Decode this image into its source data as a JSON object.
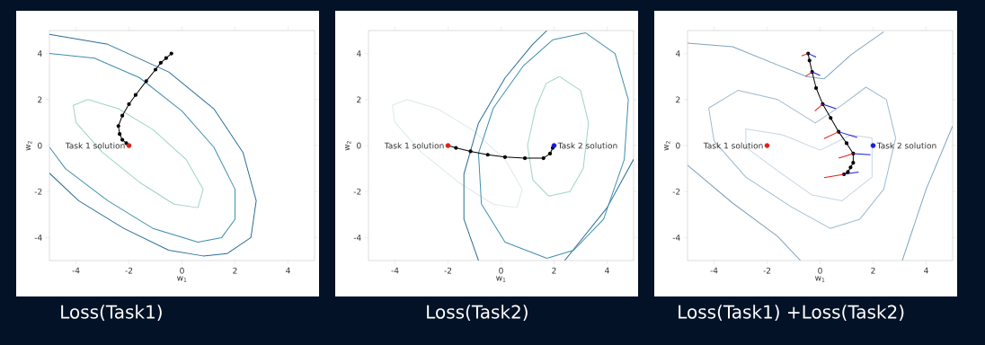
{
  "chart_data": [
    {
      "type": "line",
      "title": "Loss(Task1)",
      "xlabel": "w$_{1}$",
      "ylabel": "w$_{2}$",
      "xlim": [
        -5,
        5
      ],
      "ylim": [
        -5,
        5
      ],
      "xticks": [
        -4,
        -2,
        0,
        2,
        4
      ],
      "yticks": [
        -4,
        -2,
        0,
        2,
        4
      ],
      "series": [
        {
          "color": "#2b6e96",
          "x": [
            -5,
            -2.8,
            -0.5,
            1.2,
            2.3,
            2.8,
            2.6,
            1.7,
            0.8,
            -0.5,
            -2.2,
            -3.9,
            -5
          ],
          "values": [
            4.83,
            4.4,
            3.2,
            1.6,
            -0.3,
            -2.4,
            -4.0,
            -4.7,
            -4.8,
            -4.55,
            -3.6,
            -2.4,
            -1.2
          ]
        },
        {
          "color": "#3f8fae",
          "x": [
            -5,
            -3.3,
            -1.6,
            0,
            1.2,
            2.0,
            2.0,
            1.5,
            0.6,
            -1.1,
            -2.8,
            -4.4,
            -5
          ],
          "values": [
            4.0,
            3.8,
            2.95,
            1.5,
            -0.07,
            -1.9,
            -3.2,
            -4.0,
            -4.2,
            -3.6,
            -2.4,
            -1.0,
            -0.07
          ]
        },
        {
          "color": "#9fd4c6",
          "x": [
            -3.55,
            -2.4,
            -1.1,
            0.15,
            0.8,
            0.6
          ],
          "values": [
            2.0,
            1.6,
            0.7,
            -0.6,
            -1.9,
            -2.7
          ]
        },
        {
          "color": "#9fd4c6",
          "x": [
            0.6,
            -0.3,
            -1.6,
            -3.0,
            -4.0,
            -4.1,
            -3.55
          ],
          "values": [
            -2.7,
            -2.55,
            -1.6,
            -0.3,
            1.0,
            1.75,
            2.0
          ]
        },
        {
          "color": "#000000",
          "marker": "circle",
          "x": [
            -0.4,
            -0.6,
            -0.8,
            -1.0,
            -1.35,
            -1.75,
            -2.0,
            -2.25,
            -2.4,
            -2.35,
            -2.25,
            -2.1,
            -2.0
          ],
          "values": [
            4.0,
            3.8,
            3.6,
            3.3,
            2.8,
            2.2,
            1.8,
            1.3,
            0.85,
            0.5,
            0.25,
            0.1,
            0.0
          ]
        },
        {
          "type": "scatter",
          "name": "Task 1 solution",
          "color": "#e0201b",
          "marker": "circle",
          "x": [
            -2
          ],
          "values": [
            0
          ]
        }
      ]
    },
    {
      "type": "line",
      "title": "Loss(Task2)",
      "xlabel": "w$_{1}$",
      "ylabel": "w$_{2}$",
      "xlim": [
        -5,
        5
      ],
      "ylim": [
        -5,
        5
      ],
      "xticks": [
        -4,
        -2,
        0,
        2,
        4
      ],
      "yticks": [
        -4,
        -2,
        0,
        2,
        4
      ],
      "series": [
        {
          "color": "#dde9ea",
          "x": [
            -3.55,
            -2.4,
            -1.1,
            0.15,
            0.8,
            0.6
          ],
          "values": [
            2.0,
            1.6,
            0.7,
            -0.6,
            -1.9,
            -2.7
          ]
        },
        {
          "color": "#dde9ea",
          "x": [
            0.6,
            -0.3,
            -1.6,
            -3.0,
            -4.0,
            -4.1,
            -3.55
          ],
          "values": [
            -2.7,
            -2.55,
            -1.6,
            -0.3,
            1.0,
            1.75,
            2.0
          ]
        },
        {
          "color": "#2b6e96",
          "x": [
            -0.85,
            -1.4,
            -1.4,
            -0.85,
            0.15,
            1.17,
            1.73
          ],
          "values": [
            -5,
            -3.2,
            -1.24,
            0.98,
            2.94,
            4.37,
            5
          ]
        },
        {
          "color": "#2b6e96",
          "x": [
            5,
            4,
            2.4
          ],
          "values": [
            -0.6,
            -2.7,
            -5
          ]
        },
        {
          "color": "#3f8fae",
          "x": [
            3.19,
            4.3,
            4.8,
            4.65,
            3.87,
            2.74,
            1.73
          ],
          "values": [
            4.9,
            4.0,
            2.0,
            -0.6,
            -3.2,
            -4.55,
            -4.9
          ]
        },
        {
          "color": "#3f8fae",
          "x": [
            1.73,
            0.15,
            -0.74,
            -0.85,
            -0.29,
            0.83,
            1.96,
            3.19
          ],
          "values": [
            -4.9,
            -4.2,
            -2.54,
            -0.33,
            1.63,
            3.45,
            4.6,
            4.9
          ]
        },
        {
          "color": "#9fd4c6",
          "x": [
            2.2,
            3.0,
            3.3,
            3.1,
            2.6
          ],
          "values": [
            3.0,
            2.4,
            1.0,
            -1.0,
            -2.0
          ]
        },
        {
          "color": "#9fd4c6",
          "x": [
            2.6,
            1.8,
            1.2,
            1.0,
            1.3,
            1.7,
            2.2
          ],
          "values": [
            -2.0,
            -2.2,
            -1.5,
            0.0,
            1.6,
            2.7,
            3.0
          ]
        },
        {
          "color": "#000000",
          "marker": "circle",
          "x": [
            -2,
            -1.7,
            -1.15,
            -0.5,
            0.15,
            0.9,
            1.6,
            1.85,
            1.95,
            2
          ],
          "values": [
            0,
            -0.1,
            -0.25,
            -0.4,
            -0.5,
            -0.55,
            -0.55,
            -0.35,
            -0.1,
            0
          ]
        },
        {
          "type": "scatter",
          "name": "Task 1 solution",
          "color": "#e0201b",
          "marker": "circle",
          "x": [
            -2
          ],
          "values": [
            0
          ]
        },
        {
          "type": "scatter",
          "name": "Task 2 solution",
          "color": "#1a1adb",
          "marker": "circle",
          "x": [
            2
          ],
          "values": [
            0
          ]
        }
      ]
    },
    {
      "type": "line",
      "title": "Loss(Task1) +Loss(Task2)",
      "xlabel": "w$_{1}$",
      "ylabel": "w$_{2}$",
      "xlim": [
        -5,
        5
      ],
      "ylim": [
        -5,
        5
      ],
      "xticks": [
        -4,
        -2,
        0,
        2,
        4
      ],
      "yticks": [
        -4,
        -2,
        0,
        2,
        4
      ],
      "series": [
        {
          "color": "#7fa3bd",
          "x": [
            -5,
            -3.3,
            -1.6,
            -0.5,
            0.15,
            1.17,
            2.4
          ],
          "values": [
            4.45,
            4.3,
            3.5,
            3.0,
            2.9,
            3.95,
            4.95
          ]
        },
        {
          "color": "#7fa3bd",
          "x": [
            -5,
            -3.3,
            -1.6,
            -0.74
          ],
          "values": [
            -0.85,
            -2.5,
            -3.95,
            -5
          ]
        },
        {
          "color": "#7fa3bd",
          "x": [
            5,
            4,
            3.1
          ],
          "values": [
            0.85,
            -1.9,
            -5
          ]
        },
        {
          "color": "#9dbad0",
          "x": [
            -4.2,
            -3.1,
            -1.6,
            -0.18,
            0.83,
            1.73,
            2.5,
            2.85
          ],
          "values": [
            1.63,
            2.4,
            2.0,
            0.98,
            1.76,
            2.54,
            2.0,
            0.33
          ]
        },
        {
          "color": "#9dbad0",
          "x": [
            2.85,
            2.4,
            1.5,
            0.38,
            -1.08,
            -2.8,
            -4.0,
            -4.2
          ],
          "values": [
            0.33,
            -1.9,
            -3.2,
            -3.6,
            -2.67,
            -1.37,
            0.2,
            1.63
          ]
        },
        {
          "color": "#c4d6e2",
          "x": [
            -2.8,
            -1.4,
            0,
            1.17,
            1.96,
            1.96
          ],
          "values": [
            0.72,
            0.46,
            -0.2,
            0.46,
            0.33,
            -1.37
          ]
        },
        {
          "color": "#c4d6e2",
          "x": [
            1.96,
            0.83,
            -0.3,
            -1.6,
            -2.8,
            -2.8
          ],
          "values": [
            -1.37,
            -2.4,
            -2.15,
            -1.1,
            -0.07,
            0.72
          ]
        },
        {
          "color": "#000000",
          "marker": "circle",
          "x": [
            -0.45,
            -0.4,
            -0.3,
            -0.15,
            0.1,
            0.4,
            0.7,
            1.0,
            1.25,
            1.25,
            1.15,
            1.05,
            0.9
          ],
          "values": [
            4.0,
            3.7,
            3.2,
            2.5,
            1.8,
            1.2,
            0.6,
            0.1,
            -0.35,
            -0.75,
            -0.95,
            -1.15,
            -1.25
          ]
        },
        {
          "color": "#e0201b",
          "x": [
            -0.45,
            -0.7
          ],
          "values": [
            4.0,
            3.9
          ]
        },
        {
          "color": "#e0201b",
          "x": [
            -0.3,
            -0.55
          ],
          "values": [
            3.2,
            3.0
          ]
        },
        {
          "color": "#e0201b",
          "x": [
            0.1,
            -0.2
          ],
          "values": [
            1.8,
            1.5
          ]
        },
        {
          "color": "#e0201b",
          "x": [
            0.7,
            0.15
          ],
          "values": [
            0.6,
            0.3
          ]
        },
        {
          "color": "#e0201b",
          "x": [
            1.25,
            0.7
          ],
          "values": [
            -0.35,
            -0.55
          ]
        },
        {
          "color": "#e0201b",
          "x": [
            0.9,
            0.15
          ],
          "values": [
            -1.25,
            -1.4
          ]
        },
        {
          "color": "#1a1adb",
          "x": [
            -0.45,
            -0.15
          ],
          "values": [
            4.0,
            3.85
          ]
        },
        {
          "color": "#1a1adb",
          "x": [
            -0.3,
            0
          ],
          "values": [
            3.2,
            3.05
          ]
        },
        {
          "color": "#1a1adb",
          "x": [
            0.1,
            0.6
          ],
          "values": [
            1.8,
            1.6
          ]
        },
        {
          "color": "#1a1adb",
          "x": [
            0.7,
            1.4
          ],
          "values": [
            0.6,
            0.35
          ]
        },
        {
          "color": "#1a1adb",
          "x": [
            1.25,
            1.9
          ],
          "values": [
            -0.35,
            -0.4
          ]
        },
        {
          "color": "#1a1adb",
          "x": [
            0.9,
            1.45
          ],
          "values": [
            -1.25,
            -1.15
          ]
        },
        {
          "type": "scatter",
          "name": "Task 1 solution",
          "color": "#e0201b",
          "marker": "circle",
          "x": [
            -2
          ],
          "values": [
            0
          ]
        },
        {
          "type": "scatter",
          "name": "Task 2 solution",
          "color": "#1a1adb",
          "marker": "circle",
          "x": [
            2
          ],
          "values": [
            0
          ]
        }
      ]
    }
  ]
}
